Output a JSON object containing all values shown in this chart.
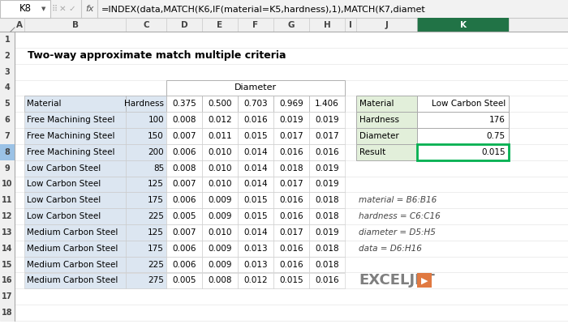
{
  "title": "Two-way approximate match multiple criteria",
  "formula_bar_cell": "K8",
  "formula_bar_text": "=INDEX(data,MATCH(K6,IF(material=K5,hardness),1),MATCH(K7,diamet",
  "diameter_label": "Diameter",
  "main_table_headers": [
    "Material",
    "Hardness",
    "0.375",
    "0.500",
    "0.703",
    "0.969",
    "1.406"
  ],
  "main_table_data": [
    [
      "Free Machining Steel",
      "100",
      "0.008",
      "0.012",
      "0.016",
      "0.019",
      "0.019"
    ],
    [
      "Free Machining Steel",
      "150",
      "0.007",
      "0.011",
      "0.015",
      "0.017",
      "0.017"
    ],
    [
      "Free Machining Steel",
      "200",
      "0.006",
      "0.010",
      "0.014",
      "0.016",
      "0.016"
    ],
    [
      "Low Carbon Steel",
      "85",
      "0.008",
      "0.010",
      "0.014",
      "0.018",
      "0.019"
    ],
    [
      "Low Carbon Steel",
      "125",
      "0.007",
      "0.010",
      "0.014",
      "0.017",
      "0.019"
    ],
    [
      "Low Carbon Steel",
      "175",
      "0.006",
      "0.009",
      "0.015",
      "0.016",
      "0.018"
    ],
    [
      "Low Carbon Steel",
      "225",
      "0.005",
      "0.009",
      "0.015",
      "0.016",
      "0.018"
    ],
    [
      "Medium Carbon Steel",
      "125",
      "0.007",
      "0.010",
      "0.014",
      "0.017",
      "0.019"
    ],
    [
      "Medium Carbon Steel",
      "175",
      "0.006",
      "0.009",
      "0.013",
      "0.016",
      "0.018"
    ],
    [
      "Medium Carbon Steel",
      "225",
      "0.006",
      "0.009",
      "0.013",
      "0.016",
      "0.018"
    ],
    [
      "Medium Carbon Steel",
      "275",
      "0.005",
      "0.008",
      "0.012",
      "0.015",
      "0.016"
    ]
  ],
  "side_table_data": [
    [
      "Material",
      "Low Carbon Steel"
    ],
    [
      "Hardness",
      "176"
    ],
    [
      "Diameter",
      "0.75"
    ],
    [
      "Result",
      "0.015"
    ]
  ],
  "named_ranges": [
    "material = B6:B16",
    "hardness = C6:C16",
    "diameter = D5:H5",
    "data = D6:H16"
  ],
  "bg_color": "#ffffff",
  "col_hdr_bg": "#f0f0f0",
  "col_hdr_selected": "#107c41",
  "col_hdr_selected_text": "#ffffff",
  "row_hdr_selected_bg": "#9bc2e6",
  "main_blue_bg": "#dce6f1",
  "side_green_bg": "#e2efda",
  "result_cell_border": "#00b050",
  "exceljet_orange": "#e07941",
  "grid_color": "#d0d0d0",
  "formula_bg": "#f2f2f2"
}
